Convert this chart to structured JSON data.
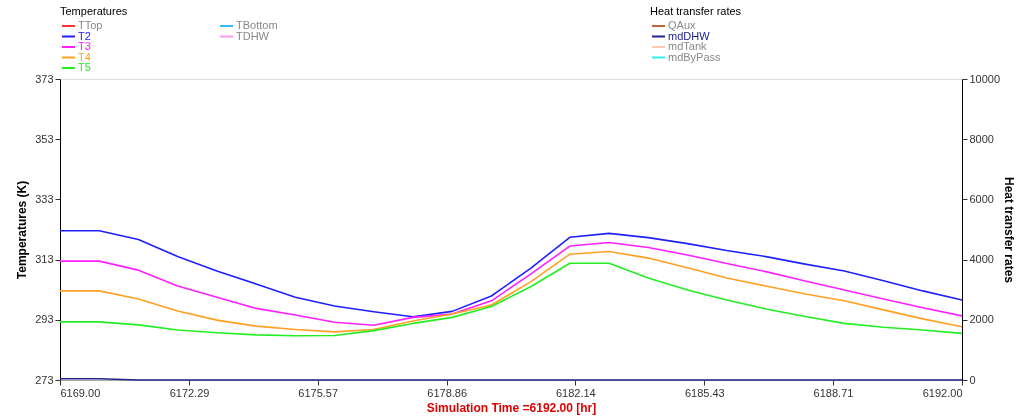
{
  "chart_data": {
    "type": "line",
    "xlabel": "Simulation Time =6192.00 [hr]",
    "ylabel": "Temperatures (K)",
    "y2label": "Heat transfer rates",
    "legend_title": "Temperatures",
    "x": [
      6169,
      6170,
      6171,
      6172,
      6173,
      6174,
      6175,
      6176,
      6177,
      6178,
      6179,
      6180,
      6181,
      6182,
      6183,
      6184,
      6185,
      6186,
      6187,
      6188,
      6189,
      6190,
      6191,
      6192
    ],
    "series": [
      {
        "name": "TTop",
        "color": "#ff3333",
        "axis": "y",
        "values": [
          null,
          null,
          null,
          null,
          null,
          null,
          null,
          null,
          null,
          null,
          null,
          null,
          null,
          null,
          null,
          null,
          null,
          null,
          null,
          null,
          null,
          null,
          null,
          null
        ]
      },
      {
        "name": "T2",
        "color": "#2020ff",
        "axis": "y",
        "values": [
          322.6,
          322.6,
          319.7,
          314.0,
          309.2,
          304.9,
          300.5,
          297.6,
          295.7,
          294.0,
          295.8,
          300.9,
          310.1,
          320.4,
          321.7,
          320.3,
          318.3,
          316.0,
          314.0,
          311.5,
          309.2,
          306.0,
          302.6,
          299.6
        ]
      },
      {
        "name": "T3",
        "color": "#ff20ff",
        "axis": "y",
        "values": [
          312.5,
          312.5,
          309.5,
          304.2,
          300.5,
          296.8,
          294.6,
          292.2,
          291.2,
          293.8,
          294.9,
          299.3,
          308.2,
          317.5,
          318.7,
          317.0,
          314.5,
          311.7,
          309.0,
          305.9,
          302.9,
          299.9,
          297.0,
          294.3
        ]
      },
      {
        "name": "T4",
        "color": "#ffa020",
        "axis": "y",
        "values": [
          302.6,
          302.6,
          299.9,
          295.9,
          292.9,
          290.9,
          289.8,
          289.0,
          289.8,
          292.6,
          294.9,
          297.9,
          305.6,
          314.8,
          315.7,
          313.5,
          310.3,
          306.9,
          304.2,
          301.6,
          299.3,
          296.3,
          293.3,
          290.7
        ]
      },
      {
        "name": "T5",
        "color": "#22ee22",
        "axis": "y",
        "values": [
          292.3,
          292.3,
          291.3,
          289.6,
          288.7,
          288.0,
          287.7,
          287.8,
          289.4,
          291.8,
          293.8,
          297.4,
          304.0,
          311.8,
          311.8,
          306.9,
          302.9,
          299.6,
          296.6,
          294.1,
          291.8,
          290.5,
          289.6,
          288.5
        ]
      },
      {
        "name": "TBottom",
        "color": "#33bbff",
        "axis": "y",
        "values": [
          null,
          null,
          null,
          null,
          null,
          null,
          null,
          null,
          null,
          null,
          null,
          null,
          null,
          null,
          null,
          null,
          null,
          null,
          null,
          null,
          null,
          null,
          null,
          null
        ]
      },
      {
        "name": "TDHW",
        "color": "#ff99ee",
        "axis": "y",
        "values": [
          null,
          null,
          null,
          null,
          null,
          null,
          null,
          null,
          null,
          null,
          null,
          null,
          null,
          null,
          null,
          null,
          null,
          null,
          null,
          null,
          null,
          null,
          null,
          null
        ]
      },
      {
        "name": "QAux",
        "color": "#c0643c",
        "axis": "y2",
        "values": [
          null,
          null,
          null,
          null,
          null,
          null,
          null,
          null,
          null,
          null,
          null,
          null,
          null,
          null,
          null,
          null,
          null,
          null,
          null,
          null,
          null,
          null,
          null,
          null
        ]
      },
      {
        "name": "mdDHW",
        "color": "#22228f",
        "axis": "y2",
        "values": [
          40,
          40,
          0,
          0,
          0,
          0,
          0,
          0,
          0,
          0,
          0,
          0,
          0,
          0,
          0,
          0,
          0,
          0,
          0,
          0,
          0,
          0,
          0,
          0
        ]
      },
      {
        "name": "mdTank",
        "color": "#ffc8b0",
        "axis": "y2",
        "values": [
          null,
          null,
          null,
          null,
          null,
          null,
          null,
          null,
          null,
          null,
          null,
          null,
          null,
          null,
          null,
          null,
          null,
          null,
          null,
          null,
          null,
          null,
          null,
          null
        ]
      },
      {
        "name": "mdByPass",
        "color": "#33eeee",
        "axis": "y2",
        "values": [
          null,
          null,
          null,
          null,
          null,
          null,
          null,
          null,
          null,
          null,
          null,
          null,
          null,
          null,
          null,
          null,
          null,
          null,
          null,
          null,
          null,
          null,
          null,
          null
        ]
      }
    ],
    "xlim": [
      6169,
      6192
    ],
    "xticks": [
      {
        "value": 6169,
        "label": "6169.00"
      },
      {
        "value": 6172.29,
        "label": "6172.29"
      },
      {
        "value": 6175.57,
        "label": "6175.57"
      },
      {
        "value": 6178.86,
        "label": "6178.86"
      },
      {
        "value": 6182.14,
        "label": "6182.14"
      },
      {
        "value": 6185.43,
        "label": "6185.43"
      },
      {
        "value": 6188.71,
        "label": "6188.71"
      },
      {
        "value": 6192,
        "label": "6192.00"
      }
    ],
    "ylim": [
      273,
      373
    ],
    "yticks": [
      273,
      293,
      313,
      333,
      353,
      373
    ],
    "y2lim": [
      0,
      10000
    ],
    "y2ticks": [
      0,
      2000,
      4000,
      6000,
      8000,
      10000
    ],
    "grid": false,
    "legend": "top",
    "marker": "none",
    "line_style": "solid"
  }
}
